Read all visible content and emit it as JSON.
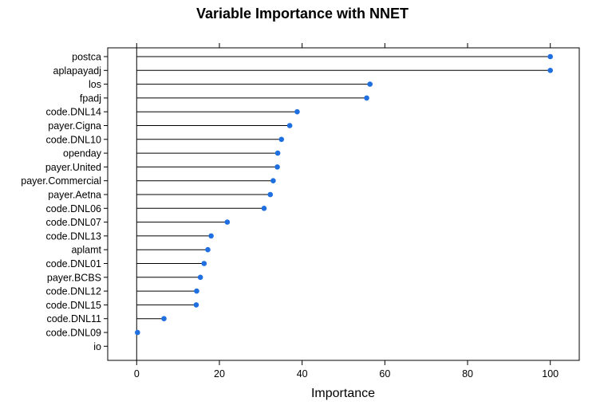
{
  "chart_data": {
    "type": "dotplot",
    "title": "Variable Importance with NNET",
    "xlabel": "Importance",
    "ylabel": "",
    "xlim": [
      -7,
      107
    ],
    "xticks": [
      0,
      20,
      40,
      60,
      80,
      100
    ],
    "grid": false,
    "colors": {
      "point": "#1f6fe0",
      "line": "#000000",
      "frame": "#000000"
    },
    "categories": [
      "postca",
      "aplapayadj",
      "los",
      "fpadj",
      "code.DNL14",
      "payer.Cigna",
      "code.DNL10",
      "openday",
      "payer.United",
      "payer.Commercial",
      "payer.Aetna",
      "code.DNL06",
      "code.DNL07",
      "code.DNL13",
      "aplamt",
      "code.DNL01",
      "payer.BCBS",
      "code.DNL12",
      "code.DNL15",
      "code.DNL11",
      "code.DNL09",
      "io"
    ],
    "values": [
      100,
      100,
      56.4,
      55.6,
      38.8,
      37.0,
      35.0,
      34.1,
      34.0,
      33.0,
      32.3,
      30.8,
      21.9,
      18.0,
      17.2,
      16.3,
      15.4,
      14.5,
      14.4,
      6.6,
      0.2,
      null
    ]
  }
}
